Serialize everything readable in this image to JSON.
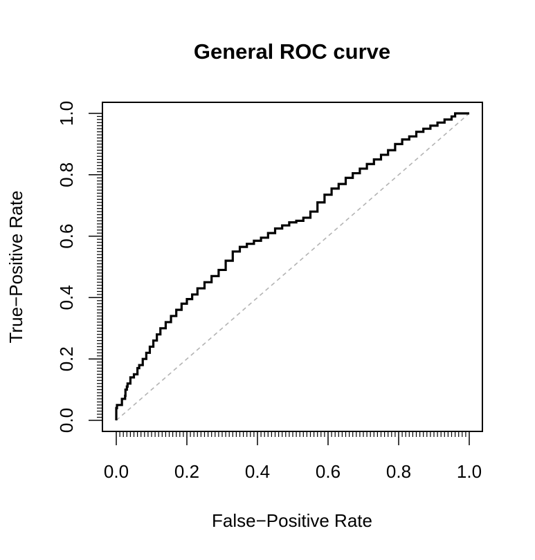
{
  "chart_data": {
    "type": "line",
    "title": "General ROC curve",
    "xlabel": "False−Positive Rate",
    "ylabel": "True−Positive Rate",
    "xlim": [
      0,
      1
    ],
    "ylim": [
      0,
      1
    ],
    "x_ticks": [
      "0.0",
      "0.2",
      "0.4",
      "0.6",
      "0.8",
      "1.0"
    ],
    "y_ticks": [
      "0.0",
      "0.2",
      "0.4",
      "0.6",
      "0.8",
      "1.0"
    ],
    "x_tick_values": [
      0,
      0.2,
      0.4,
      0.6,
      0.8,
      1.0
    ],
    "y_tick_values": [
      0,
      0.2,
      0.4,
      0.6,
      0.8,
      1.0
    ],
    "minor_rug_ticks": true,
    "grid": false,
    "reference_line": {
      "x": [
        0,
        1
      ],
      "y": [
        0,
        1
      ],
      "style": "dashed",
      "color": "#b3b3b3"
    },
    "series": [
      {
        "color": "#000000",
        "x": [
          0,
          0,
          0.002,
          0.015,
          0.016,
          0.025,
          0.026,
          0.03,
          0.032,
          0.04,
          0.05,
          0.06,
          0.065,
          0.075,
          0.085,
          0.095,
          0.105,
          0.115,
          0.125,
          0.14,
          0.155,
          0.17,
          0.185,
          0.2,
          0.215,
          0.23,
          0.25,
          0.27,
          0.29,
          0.31,
          0.33,
          0.35,
          0.37,
          0.39,
          0.41,
          0.43,
          0.45,
          0.47,
          0.49,
          0.51,
          0.53,
          0.55,
          0.57,
          0.59,
          0.61,
          0.63,
          0.65,
          0.67,
          0.69,
          0.71,
          0.73,
          0.75,
          0.77,
          0.79,
          0.81,
          0.83,
          0.85,
          0.87,
          0.89,
          0.91,
          0.93,
          0.95,
          0.96,
          0.97,
          1.0
        ],
        "y": [
          0,
          0.04,
          0.05,
          0.05,
          0.07,
          0.08,
          0.1,
          0.11,
          0.12,
          0.14,
          0.15,
          0.17,
          0.18,
          0.2,
          0.22,
          0.24,
          0.26,
          0.28,
          0.3,
          0.32,
          0.34,
          0.36,
          0.38,
          0.395,
          0.41,
          0.43,
          0.45,
          0.47,
          0.49,
          0.52,
          0.55,
          0.565,
          0.575,
          0.585,
          0.595,
          0.61,
          0.625,
          0.635,
          0.645,
          0.65,
          0.66,
          0.68,
          0.71,
          0.735,
          0.755,
          0.77,
          0.79,
          0.805,
          0.82,
          0.835,
          0.85,
          0.865,
          0.88,
          0.9,
          0.915,
          0.925,
          0.94,
          0.95,
          0.96,
          0.97,
          0.98,
          0.99,
          1.0,
          1.0,
          1.0
        ]
      }
    ]
  }
}
